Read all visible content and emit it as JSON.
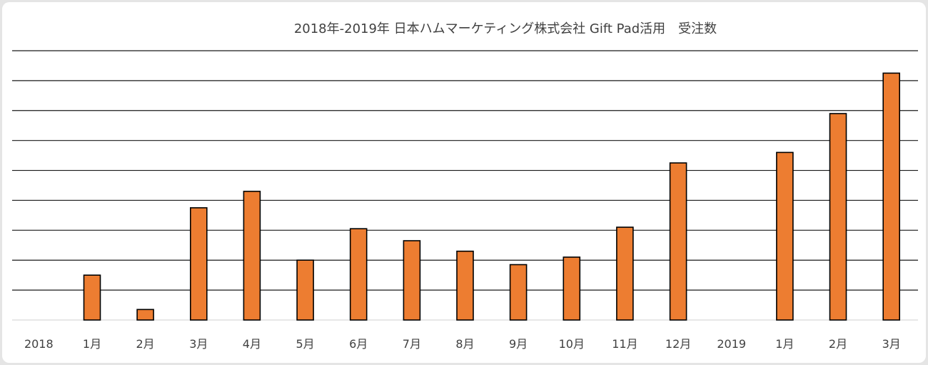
{
  "chart_data": {
    "type": "bar",
    "title": "2018年-2019年 日本ハムマーケティング株式会社 Gift Pad活用　受注数",
    "xlabel": "",
    "ylabel": "",
    "categories": [
      "2018",
      "1月",
      "2月",
      "3月",
      "4月",
      "5月",
      "6月",
      "7月",
      "8月",
      "9月",
      "10月",
      "11月",
      "12月",
      "2019",
      "1月",
      "2月",
      "3月"
    ],
    "values": [
      null,
      1.5,
      0.35,
      3.75,
      4.3,
      2.0,
      3.05,
      2.65,
      2.3,
      1.85,
      2.1,
      3.1,
      5.25,
      null,
      5.6,
      6.9,
      8.25
    ],
    "ylim": [
      0,
      9
    ],
    "gridlines": [
      1,
      2,
      3,
      4,
      5,
      6,
      7,
      8,
      9
    ],
    "grid": true,
    "legend": "none",
    "bar_color": "#ED7D31",
    "bar_outline_color": "#000000"
  }
}
